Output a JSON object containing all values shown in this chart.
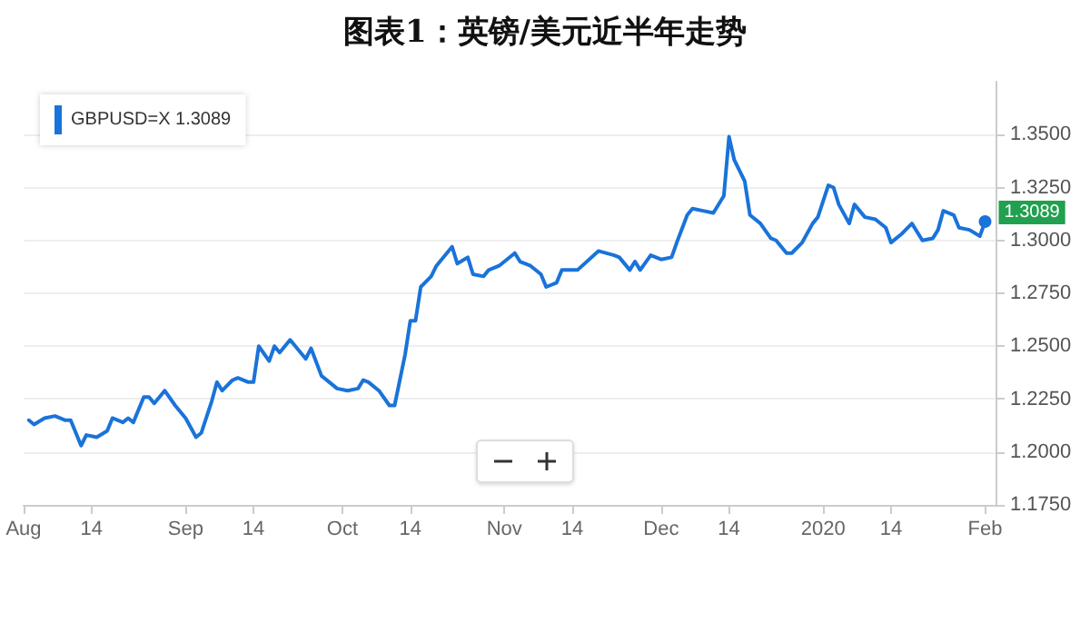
{
  "chart_data": {
    "type": "line",
    "title": "图表1：英镑/美元近半年走势",
    "x": [
      "2019-08-02",
      "2019-08-03",
      "2019-08-05",
      "2019-08-07",
      "2019-08-09",
      "2019-08-10",
      "2019-08-12",
      "2019-08-13",
      "2019-08-15",
      "2019-08-17",
      "2019-08-18",
      "2019-08-20",
      "2019-08-21",
      "2019-08-22",
      "2019-08-24",
      "2019-08-25",
      "2019-08-26",
      "2019-08-28",
      "2019-08-30",
      "2019-09-01",
      "2019-09-03",
      "2019-09-04",
      "2019-09-06",
      "2019-09-07",
      "2019-09-08",
      "2019-09-10",
      "2019-09-11",
      "2019-09-13",
      "2019-09-14",
      "2019-09-15",
      "2019-09-17",
      "2019-09-18",
      "2019-09-19",
      "2019-09-21",
      "2019-09-23",
      "2019-09-24",
      "2019-09-25",
      "2019-09-27",
      "2019-09-30",
      "2019-10-02",
      "2019-10-04",
      "2019-10-05",
      "2019-10-06",
      "2019-10-08",
      "2019-10-10",
      "2019-10-11",
      "2019-10-13",
      "2019-10-14",
      "2019-10-15",
      "2019-10-16",
      "2019-10-18",
      "2019-10-19",
      "2019-10-20",
      "2019-10-22",
      "2019-10-23",
      "2019-10-25",
      "2019-10-26",
      "2019-10-28",
      "2019-10-29",
      "2019-10-31",
      "2019-11-03",
      "2019-11-04",
      "2019-11-06",
      "2019-11-08",
      "2019-11-09",
      "2019-11-11",
      "2019-11-12",
      "2019-11-15",
      "2019-11-19",
      "2019-11-22",
      "2019-11-23",
      "2019-11-25",
      "2019-11-26",
      "2019-11-27",
      "2019-11-29",
      "2019-12-01",
      "2019-12-03",
      "2019-12-04",
      "2019-12-06",
      "2019-12-07",
      "2019-12-09",
      "2019-12-11",
      "2019-12-13",
      "2019-12-14",
      "2019-12-15",
      "2019-12-17",
      "2019-12-18",
      "2019-12-20",
      "2019-12-22",
      "2019-12-23",
      "2019-12-25",
      "2019-12-26",
      "2019-12-28",
      "2019-12-30",
      "2019-12-31",
      "2020-01-02",
      "2020-01-03",
      "2020-01-04",
      "2020-01-06",
      "2020-01-07",
      "2020-01-09",
      "2020-01-11",
      "2020-01-13",
      "2020-01-14",
      "2020-01-16",
      "2020-01-18",
      "2020-01-20",
      "2020-01-22",
      "2020-01-23",
      "2020-01-24",
      "2020-01-26",
      "2020-01-27",
      "2020-01-29",
      "2020-01-31",
      "2020-02-01"
    ],
    "series": [
      {
        "name": "GBPUSD=X 1.3089",
        "color": "#1a73d9",
        "values": [
          1.215,
          1.213,
          1.216,
          1.217,
          1.215,
          1.215,
          1.203,
          1.208,
          1.207,
          1.21,
          1.216,
          1.214,
          1.216,
          1.214,
          1.226,
          1.226,
          1.223,
          1.229,
          1.222,
          1.216,
          1.207,
          1.209,
          1.224,
          1.233,
          1.229,
          1.234,
          1.235,
          1.233,
          1.233,
          1.25,
          1.243,
          1.25,
          1.247,
          1.253,
          1.247,
          1.244,
          1.249,
          1.236,
          1.23,
          1.229,
          1.23,
          1.234,
          1.233,
          1.229,
          1.222,
          1.222,
          1.246,
          1.262,
          1.262,
          1.278,
          1.283,
          1.288,
          1.291,
          1.297,
          1.289,
          1.292,
          1.284,
          1.283,
          1.286,
          1.288,
          1.294,
          1.29,
          1.288,
          1.284,
          1.278,
          1.28,
          1.286,
          1.286,
          1.295,
          1.293,
          1.292,
          1.286,
          1.29,
          1.286,
          1.293,
          1.291,
          1.292,
          1.299,
          1.312,
          1.315,
          1.314,
          1.313,
          1.321,
          1.349,
          1.338,
          1.328,
          1.312,
          1.308,
          1.301,
          1.3,
          1.294,
          1.294,
          1.299,
          1.308,
          1.311,
          1.326,
          1.325,
          1.317,
          1.308,
          1.317,
          1.311,
          1.31,
          1.306,
          1.299,
          1.303,
          1.308,
          1.3,
          1.301,
          1.305,
          1.314,
          1.312,
          1.306,
          1.305,
          1.302,
          1.3089
        ]
      }
    ],
    "xlim": [
      "2019-08-01",
      "2020-02-03"
    ],
    "xticks": [
      {
        "value": "2019-08-01",
        "label": "Aug"
      },
      {
        "value": "2019-08-14",
        "label": "14"
      },
      {
        "value": "2019-09-01",
        "label": "Sep"
      },
      {
        "value": "2019-09-14",
        "label": "14"
      },
      {
        "value": "2019-10-01",
        "label": "Oct"
      },
      {
        "value": "2019-10-14",
        "label": "14"
      },
      {
        "value": "2019-11-01",
        "label": "Nov"
      },
      {
        "value": "2019-11-14",
        "label": "14"
      },
      {
        "value": "2019-12-01",
        "label": "Dec"
      },
      {
        "value": "2019-12-14",
        "label": "14"
      },
      {
        "value": "2020-01-01",
        "label": "2020"
      },
      {
        "value": "2020-01-14",
        "label": "14"
      },
      {
        "value": "2020-02-01",
        "label": "Feb"
      }
    ],
    "ylim": [
      1.175,
      1.375
    ],
    "yticks": [
      {
        "value": 1.175,
        "label": "1.1750"
      },
      {
        "value": 1.2,
        "label": "1.2000"
      },
      {
        "value": 1.225,
        "label": "1.2250"
      },
      {
        "value": 1.25,
        "label": "1.2500"
      },
      {
        "value": 1.275,
        "label": "1.2750"
      },
      {
        "value": 1.3,
        "label": "1.3000"
      },
      {
        "value": 1.325,
        "label": "1.3250"
      },
      {
        "value": 1.35,
        "label": "1.3500"
      }
    ],
    "annotations": [
      {
        "text": "1.3089",
        "x": "2020-02-01",
        "y": 1.3089
      }
    ],
    "grid": "y",
    "legend": "top left",
    "marker": "none",
    "line_style": "solid"
  }
}
